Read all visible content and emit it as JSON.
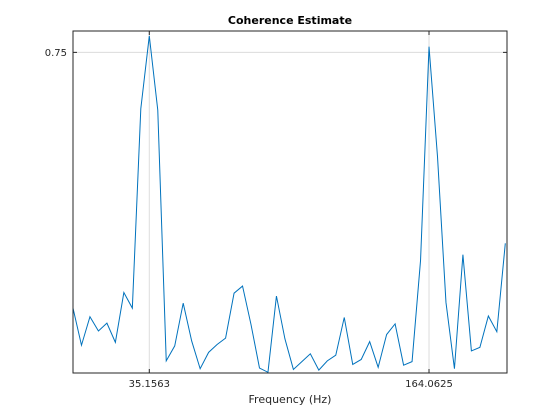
{
  "chart_data": {
    "type": "line",
    "title": "Coherence Estimate",
    "xlabel": "Frequency (Hz)",
    "ylabel": "",
    "xlim": [
      0,
      200
    ],
    "ylim": [
      0.3,
      0.78
    ],
    "grid": true,
    "x_ticks": [
      35.1563,
      164.0625
    ],
    "x_tick_labels": [
      "35.1563",
      "164.0625"
    ],
    "y_ticks": [
      0.75
    ],
    "y_tick_labels": [
      "0.75"
    ],
    "series": [
      {
        "color": "#0072BD",
        "x": [
          0,
          3.906,
          7.813,
          11.719,
          15.625,
          19.531,
          23.438,
          27.344,
          31.25,
          35.156,
          39.063,
          42.969,
          46.875,
          50.781,
          54.688,
          58.594,
          62.5,
          66.406,
          70.313,
          74.219,
          78.125,
          82.031,
          85.938,
          89.844,
          93.75,
          97.656,
          101.563,
          105.469,
          109.375,
          113.281,
          117.188,
          121.094,
          125,
          128.906,
          132.813,
          136.719,
          140.625,
          144.531,
          148.438,
          152.344,
          156.25,
          160.156,
          164.063,
          167.969,
          171.875,
          175.781,
          179.688,
          183.594,
          187.5,
          191.406,
          195.313,
          199.219
        ],
        "y": [
          0.391,
          0.339,
          0.379,
          0.359,
          0.37,
          0.343,
          0.413,
          0.391,
          0.671,
          0.773,
          0.669,
          0.317,
          0.338,
          0.398,
          0.345,
          0.306,
          0.329,
          0.34,
          0.349,
          0.412,
          0.422,
          0.368,
          0.307,
          0.301,
          0.408,
          0.348,
          0.305,
          0.316,
          0.327,
          0.304,
          0.317,
          0.325,
          0.378,
          0.312,
          0.319,
          0.344,
          0.308,
          0.354,
          0.369,
          0.311,
          0.316,
          0.458,
          0.758,
          0.604,
          0.399,
          0.306,
          0.466,
          0.331,
          0.336,
          0.38,
          0.358,
          0.482
        ]
      }
    ]
  }
}
